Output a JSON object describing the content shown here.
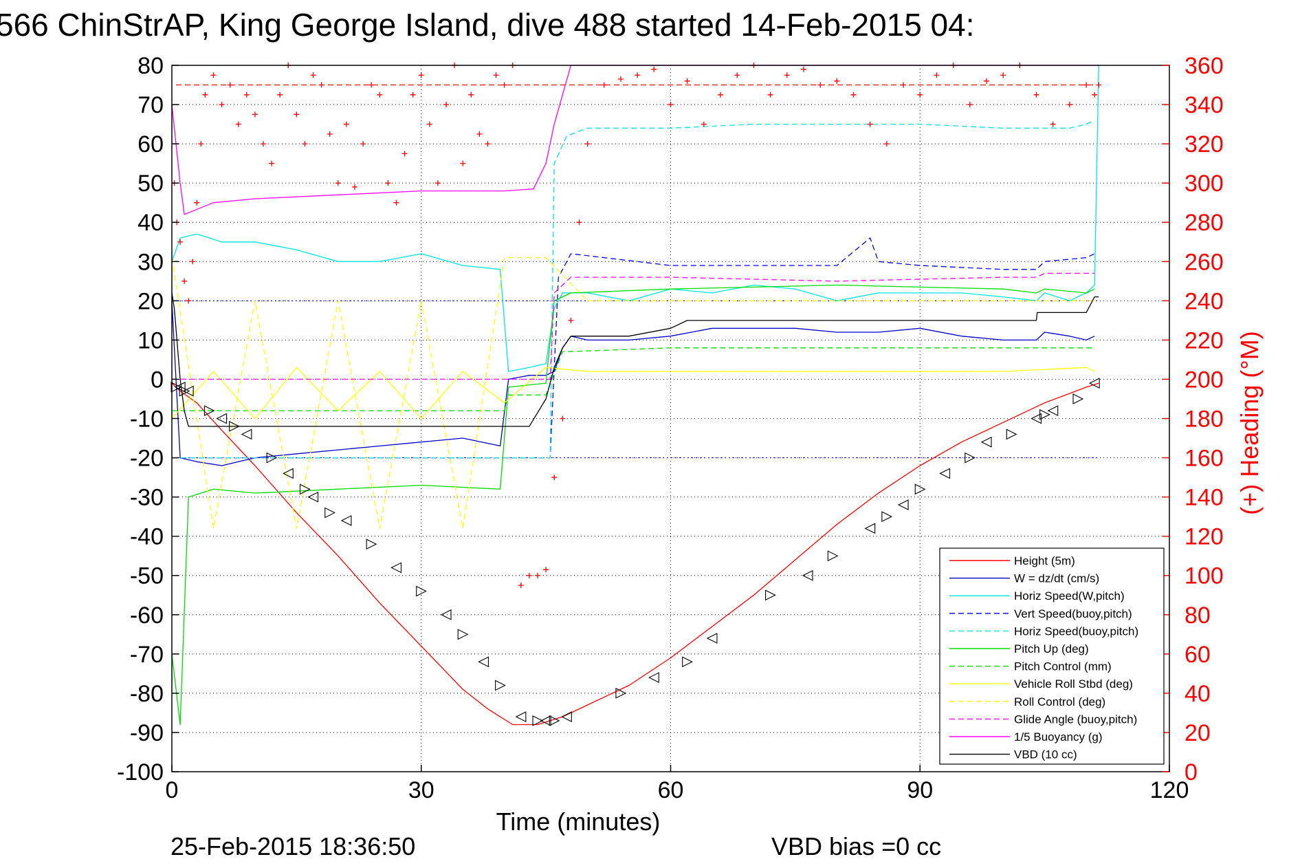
{
  "chart_data": {
    "type": "line",
    "title": "566 ChinStrAP, King George Island, dive 488 started 14-Feb-2015 04:",
    "xlabel": "Time (minutes)",
    "ylabel_right": "(+) Heading (°M)",
    "xlim": [
      0,
      120
    ],
    "ylim": [
      -100,
      80
    ],
    "ylim_right": [
      0,
      360
    ],
    "x_ticks": [
      "0",
      "30",
      "60",
      "90",
      "120"
    ],
    "y_ticks": [
      "80",
      "70",
      "60",
      "50",
      "40",
      "30",
      "20",
      "10",
      "0",
      "-10",
      "-20",
      "-30",
      "-40",
      "-50",
      "-60",
      "-70",
      "-80",
      "-90",
      "-100"
    ],
    "y_right_ticks": [
      "360",
      "340",
      "320",
      "300",
      "280",
      "260",
      "240",
      "220",
      "200",
      "180",
      "160",
      "140",
      "120",
      "100",
      "80",
      "60",
      "40",
      "20",
      "0"
    ],
    "grid": true,
    "legend_position": "bottom-right",
    "footer_left": "25-Feb-2015 18:36:50",
    "footer_center": "VBD bias =0 cc",
    "series": [
      {
        "name": "Height (5m)",
        "color": "#ff0000",
        "style": "solid",
        "x": [
          0,
          1,
          3,
          6,
          10,
          15,
          20,
          25,
          30,
          35,
          38,
          41,
          44,
          47,
          50,
          55,
          60,
          65,
          70,
          75,
          80,
          85,
          90,
          95,
          100,
          105,
          110,
          111.5
        ],
        "y": [
          -1,
          -3,
          -6,
          -13,
          -22,
          -34,
          -45,
          -57,
          -68,
          -79,
          -84,
          -88,
          -88,
          -86,
          -83,
          -78,
          -71,
          -63,
          -55,
          -46,
          -37,
          -29,
          -22,
          -16,
          -11,
          -6,
          -2,
          -1
        ]
      },
      {
        "name": "W = dz/dt (cm/s)",
        "color": "#0000cc",
        "style": "solid",
        "x": [
          0,
          0.5,
          1,
          3,
          6,
          10,
          15,
          20,
          25,
          30,
          35,
          39.5,
          40.5,
          43,
          45,
          46,
          47,
          48,
          50,
          55,
          60,
          65,
          70,
          75,
          80,
          85,
          90,
          95,
          100,
          104,
          105,
          108,
          110,
          111
        ],
        "y": [
          20,
          0,
          -20,
          -21,
          -22,
          -20,
          -19,
          -18,
          -17,
          -16,
          -15,
          -17,
          0,
          1,
          1,
          2,
          8,
          11,
          10,
          10,
          11,
          13,
          13,
          13,
          12,
          12,
          13,
          11,
          10,
          10,
          12,
          11,
          10,
          11
        ]
      },
      {
        "name": "Horiz Speed(W,pitch)",
        "color": "#00e5e5",
        "style": "solid",
        "x": [
          0,
          1,
          3,
          6,
          10,
          15,
          20,
          25,
          30,
          35,
          39.5,
          40.5,
          43,
          45,
          46,
          47,
          50,
          55,
          60,
          65,
          70,
          75,
          80,
          85,
          90,
          95,
          100,
          104,
          105,
          108,
          110,
          111,
          111.5
        ],
        "y": [
          30,
          36,
          37,
          35,
          35,
          33,
          30,
          30,
          32,
          29,
          28,
          2,
          3,
          4,
          18,
          22,
          22,
          20,
          23,
          22,
          24,
          23,
          20,
          22,
          22,
          22,
          21,
          20,
          22,
          20,
          22,
          24,
          80
        ]
      },
      {
        "name": "Vert Speed(buoy,pitch)",
        "color": "#0000ee",
        "style": "dashed",
        "x": [
          0,
          45.5,
          46.5,
          48,
          60,
          80,
          84,
          85,
          90,
          100,
          104,
          105,
          110,
          111
        ],
        "y": [
          -20,
          -20,
          26,
          32,
          29,
          29,
          36,
          30,
          29,
          28,
          28,
          30,
          31,
          32
        ]
      },
      {
        "name": "Horiz Speed(buoy,pitch)",
        "color": "#00e5e5",
        "style": "dashed",
        "x": [
          0,
          45.5,
          46,
          47.5,
          50,
          60,
          70,
          80,
          90,
          100,
          104,
          108,
          110,
          111
        ],
        "y": [
          -20,
          -20,
          55,
          62,
          64,
          64,
          65,
          65,
          65,
          64,
          64,
          64,
          65,
          66
        ]
      },
      {
        "name": "Pitch Up (deg)",
        "color": "#00dd00",
        "style": "solid",
        "x": [
          0,
          1,
          2,
          5,
          10,
          20,
          30,
          39.5,
          40.5,
          45,
          46,
          48,
          60,
          80,
          100,
          104,
          105,
          110,
          111
        ],
        "y": [
          -70,
          -88,
          -30,
          -28,
          -29,
          -28,
          -27,
          -28,
          -2,
          -1,
          20,
          22,
          23,
          24,
          23,
          22,
          23,
          22,
          23
        ]
      },
      {
        "name": "Pitch Control (mm)",
        "color": "#00dd00",
        "style": "dashed",
        "x": [
          0,
          3,
          40,
          40.5,
          45,
          47,
          60,
          80,
          100,
          111
        ],
        "y": [
          -8,
          -8,
          -8,
          -4,
          -4,
          7,
          8,
          8,
          8,
          8
        ]
      },
      {
        "name": "Vehicle Roll Stbd (deg)",
        "color": "#ffff00",
        "style": "solid",
        "x": [
          0,
          5,
          10,
          15,
          20,
          25,
          30,
          35,
          40,
          45,
          50,
          60,
          70,
          80,
          90,
          100,
          110,
          111
        ],
        "y": [
          -10,
          2,
          -10,
          3,
          -8,
          2,
          -10,
          2,
          -6,
          3,
          2,
          2,
          2,
          2,
          2,
          2,
          3,
          2
        ]
      },
      {
        "name": "Roll Control (deg)",
        "color": "#ffff00",
        "style": "dashed",
        "x": [
          0,
          5,
          10,
          15,
          20,
          25,
          30,
          35,
          40,
          45,
          50,
          60,
          70,
          80,
          90,
          100,
          110,
          111
        ],
        "y": [
          31,
          -38,
          20,
          -38,
          20,
          -38,
          20,
          -38,
          31,
          31,
          20,
          20,
          20,
          20,
          20,
          20,
          20,
          20
        ]
      },
      {
        "name": "Glide Angle (buoy,pitch)",
        "color": "#ff00ff",
        "style": "dashed",
        "x": [
          0,
          45.5,
          46,
          48,
          60,
          80,
          100,
          104,
          105,
          110,
          111
        ],
        "y": [
          0,
          0,
          22,
          26,
          26,
          25,
          26,
          26,
          27,
          27,
          27
        ]
      },
      {
        "name": "1/5 Buoyancy (g)",
        "color": "#ff00ff",
        "style": "solid",
        "x": [
          0,
          1,
          1.5,
          5,
          10,
          20,
          30,
          40,
          43.5,
          45,
          46,
          48,
          104,
          104.2,
          111,
          111.5
        ],
        "y": [
          70,
          50,
          42,
          45,
          46,
          47,
          48,
          48,
          48.5,
          55,
          65,
          80,
          80,
          80,
          80,
          80
        ]
      },
      {
        "name": "VBD (10 cc)",
        "color": "#000000",
        "style": "solid",
        "x": [
          0,
          0.3,
          1,
          1.5,
          2,
          5,
          10,
          20,
          30,
          40,
          43,
          45,
          46,
          47,
          48,
          55,
          60,
          62,
          75,
          80,
          104,
          104.1,
          110,
          111,
          111.5
        ],
        "y": [
          22,
          18,
          0,
          -8,
          -12,
          -12,
          -12,
          -12,
          -12,
          -12,
          -12,
          -5,
          3,
          8,
          11,
          11,
          13,
          15,
          15,
          15,
          15,
          17,
          17,
          21,
          21
        ]
      }
    ],
    "heading_points": {
      "name": "(+) Heading",
      "color": "#ff0000",
      "marker": "+",
      "axis": "right",
      "x": [
        0.3,
        0.6,
        1,
        1.5,
        2,
        2.5,
        3,
        3.5,
        4,
        5,
        6,
        7,
        8,
        9,
        10,
        11,
        12,
        13,
        14,
        15,
        16,
        17,
        18,
        19,
        20,
        21,
        22,
        23,
        24,
        25,
        26,
        27,
        28,
        29,
        30,
        31,
        32,
        33,
        34,
        35,
        36,
        37,
        38,
        39,
        40,
        41,
        42,
        43,
        44,
        45,
        46,
        47,
        48,
        49,
        50,
        52,
        54,
        56,
        58,
        60,
        62,
        64,
        66,
        68,
        70,
        72,
        74,
        76,
        78,
        80,
        82,
        84,
        86,
        88,
        90,
        92,
        94,
        96,
        98,
        100,
        102,
        104,
        106,
        108,
        110,
        111,
        111.5
      ],
      "y": [
        300,
        280,
        270,
        250,
        240,
        260,
        290,
        320,
        345,
        355,
        340,
        350,
        330,
        345,
        335,
        320,
        310,
        345,
        360,
        335,
        320,
        355,
        350,
        325,
        300,
        330,
        298,
        320,
        350,
        345,
        300,
        290,
        315,
        345,
        355,
        330,
        300,
        340,
        360,
        310,
        345,
        325,
        320,
        355,
        350,
        360,
        95,
        100,
        100,
        103,
        150,
        180,
        230,
        280,
        320,
        350,
        353,
        355,
        358,
        340,
        352,
        330,
        345,
        355,
        360,
        345,
        355,
        358,
        350,
        352,
        345,
        330,
        320,
        350,
        345,
        355,
        360,
        340,
        352,
        355,
        360,
        345,
        330,
        340,
        350,
        345,
        350
      ]
    },
    "reference_lines": [
      {
        "label": "heading target",
        "color": "#ff0000",
        "style": "dashed",
        "axis": "right",
        "y": 350
      },
      {
        "label": "w target up",
        "color": "#0000ff",
        "style": "dotted",
        "y": 20
      },
      {
        "label": "w target down",
        "color": "#0000ff",
        "style": "dotted",
        "y": -20
      }
    ],
    "markers": {
      "name": "sample triangles",
      "color": "#000000",
      "points_x": [
        0.5,
        1,
        1.5,
        2,
        4.5,
        6,
        7.5,
        9,
        12,
        14,
        16,
        17,
        19,
        21,
        24,
        27,
        30,
        33,
        35,
        37.5,
        39.5,
        42,
        44,
        45,
        46,
        47.5,
        54,
        58,
        62,
        65,
        72,
        76.5,
        79.5,
        84,
        86,
        88,
        90,
        93,
        96,
        98,
        101,
        104,
        105,
        106,
        109,
        111
      ],
      "points_y": [
        -2,
        -2,
        -3,
        -3,
        -8,
        -10,
        -12,
        -14,
        -20,
        -24,
        -28,
        -30,
        -34,
        -36,
        -42,
        -48,
        -54,
        -60,
        -65,
        -72,
        -78,
        -86,
        -87,
        -87,
        -87,
        -86,
        -80,
        -76,
        -72,
        -66,
        -55,
        -50,
        -45,
        -38,
        -35,
        -32,
        -28,
        -24,
        -20,
        -16,
        -14,
        -10,
        -9,
        -8,
        -5,
        -1
      ]
    }
  }
}
